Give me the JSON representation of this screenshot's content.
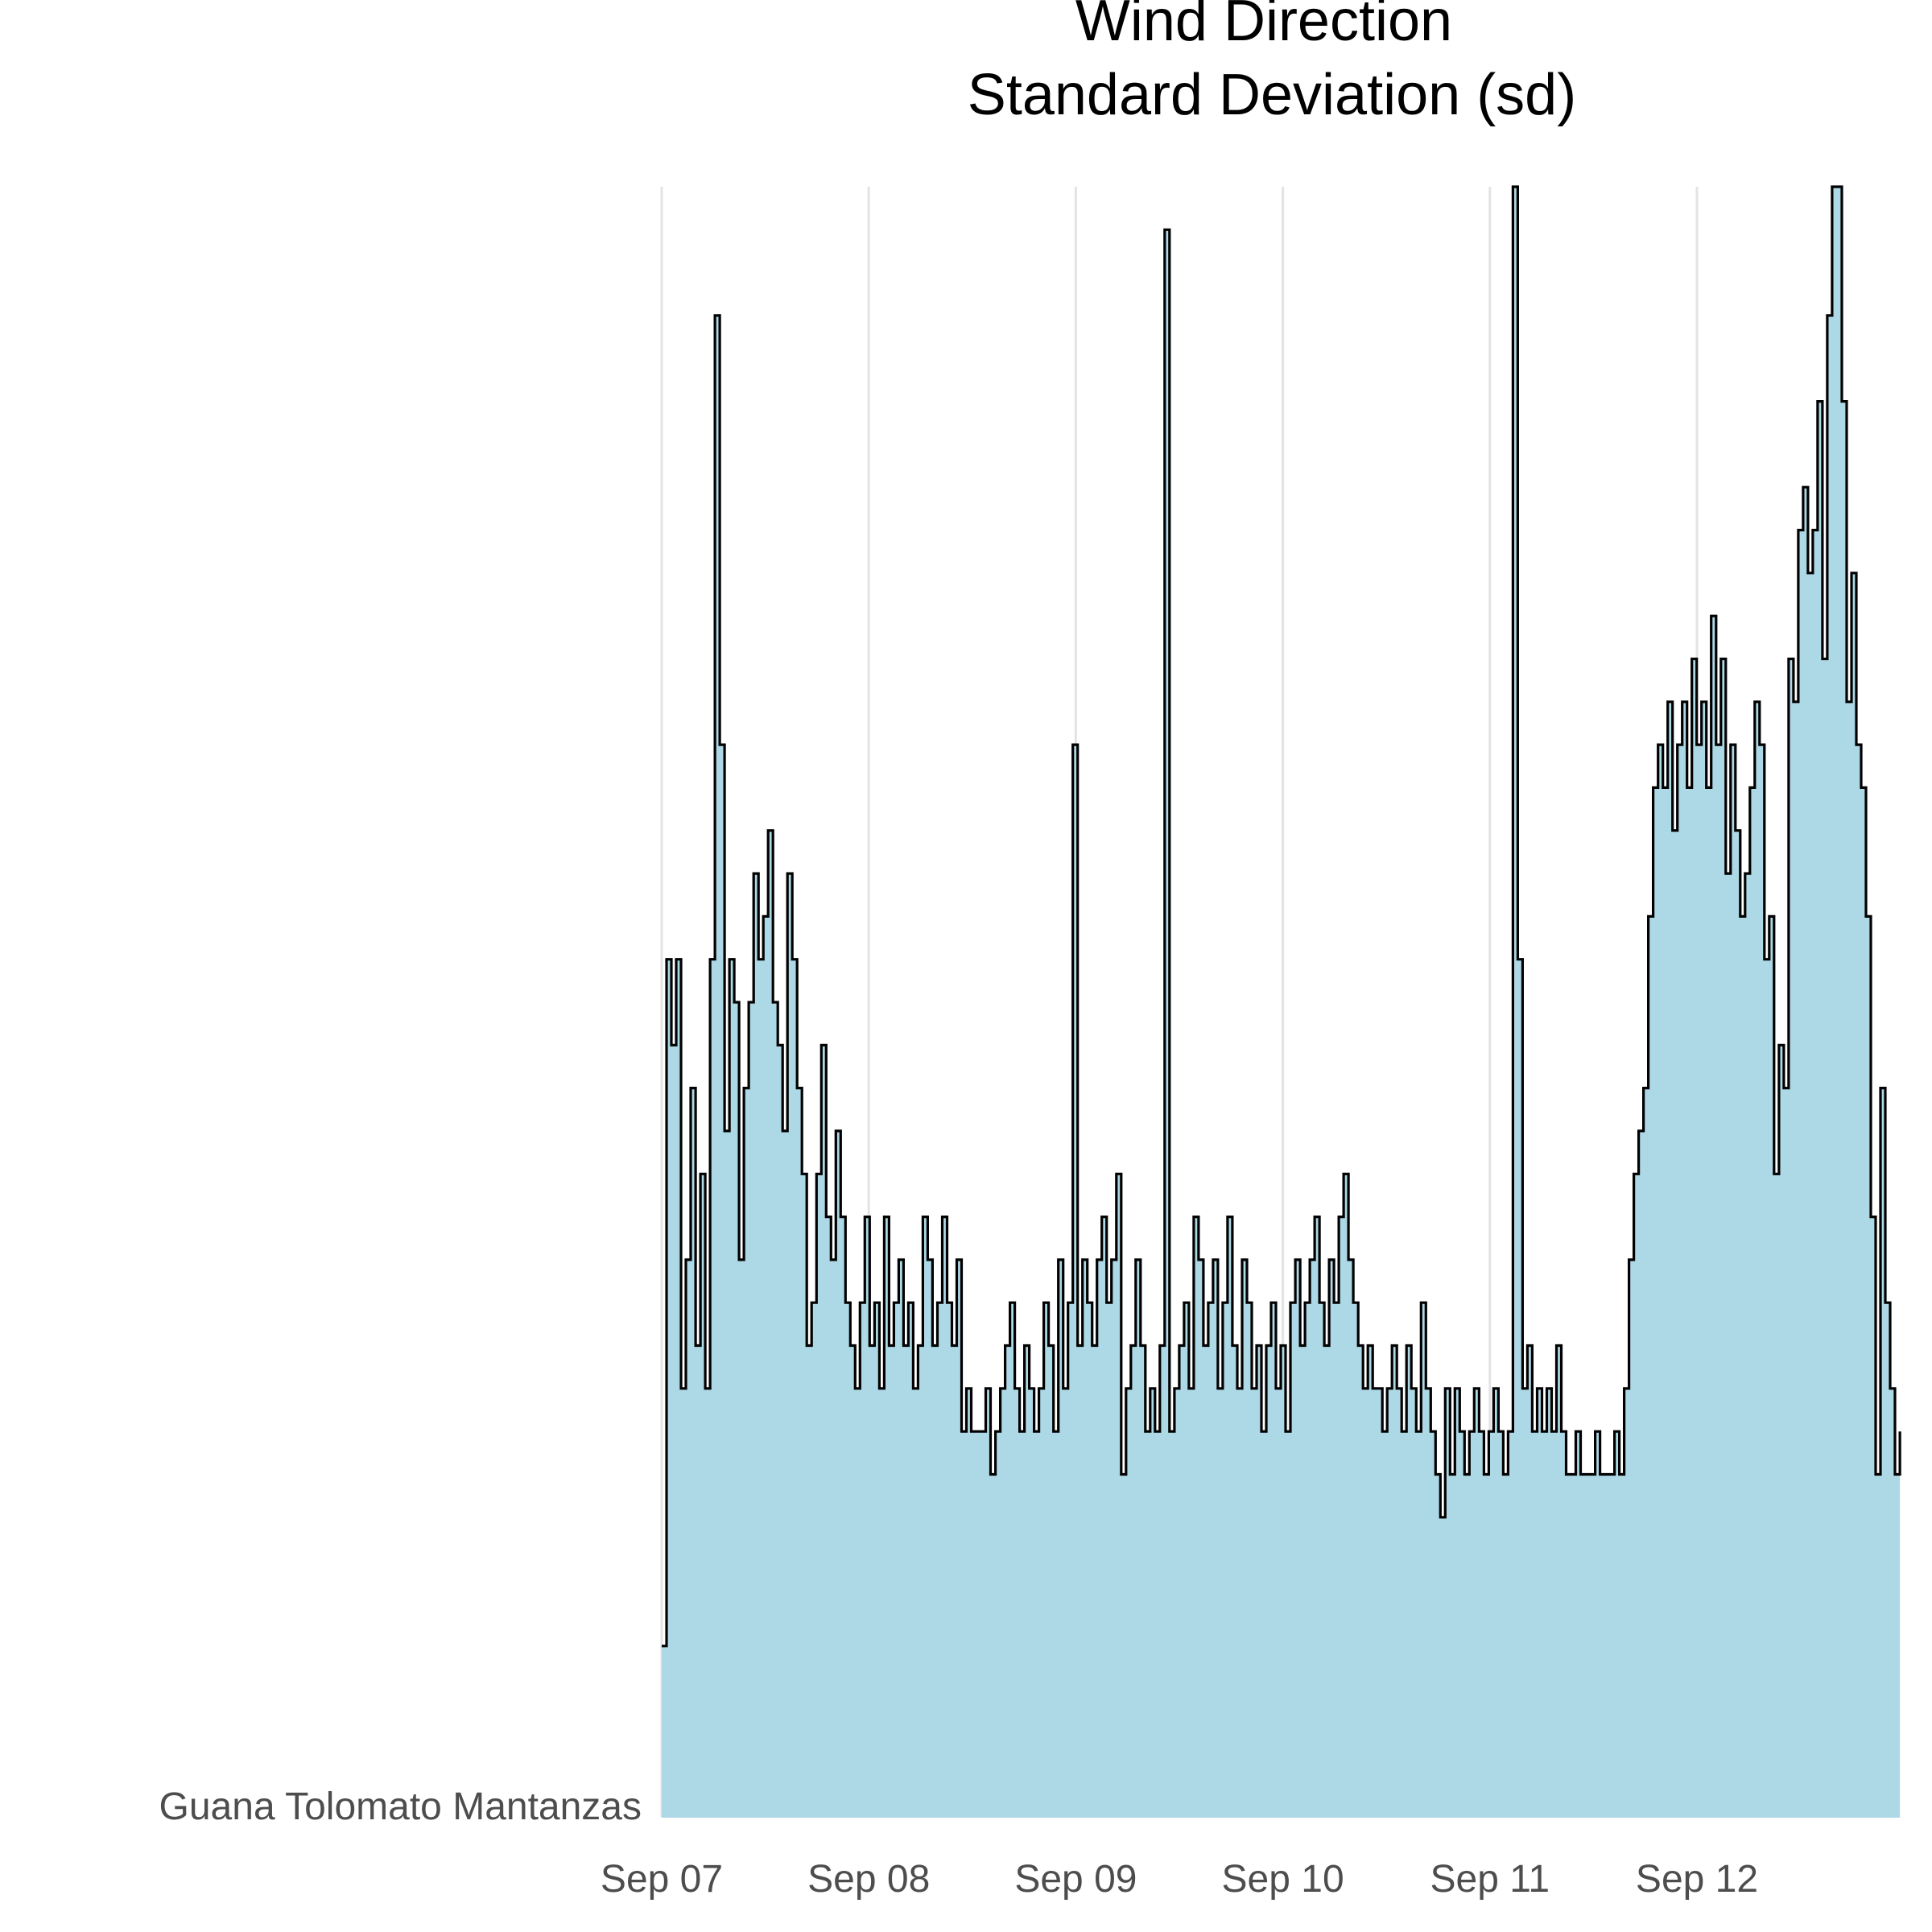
{
  "chart_data": {
    "type": "area",
    "title": "Wind Direction",
    "subtitle": "Standard Deviation (sd)",
    "xlabel": "",
    "ylabel": "",
    "category_label": "Guana Tolomato Mantanzas",
    "x_tick_labels": [
      "Sep 07",
      "Sep 08",
      "Sep 09",
      "Sep 10",
      "Sep 11",
      "Sep 12"
    ],
    "x_range": [
      "Sep 07 00:00",
      "Sep 12 23:45"
    ],
    "y_range": [
      0,
      38
    ],
    "y_axis_shown": false,
    "grid": "vertical major lines at each day",
    "fill_color": "#add8e6",
    "line_color": "#000000",
    "series": [
      {
        "values": [
          4,
          20,
          18,
          20,
          10,
          13,
          17,
          11,
          15,
          10,
          20,
          35,
          25,
          16,
          20,
          19,
          13,
          17,
          19,
          22,
          20,
          21,
          23,
          19,
          18,
          16,
          22,
          20,
          17,
          15,
          11,
          12,
          15,
          18,
          14,
          13,
          16,
          14,
          12,
          11,
          10,
          12,
          14,
          11,
          12,
          10,
          14,
          11,
          12,
          13,
          11,
          12,
          10,
          11,
          14,
          13,
          11,
          12,
          14,
          12,
          11,
          13,
          9,
          10,
          9,
          9,
          9,
          10,
          8,
          9,
          10,
          11,
          12,
          10,
          9,
          11,
          10,
          9,
          10,
          12,
          11,
          9,
          13,
          10,
          12,
          25,
          11,
          13,
          12,
          11,
          13,
          14,
          12,
          13,
          15,
          8,
          10,
          11,
          13,
          11,
          9,
          10,
          9,
          11,
          37,
          9,
          10,
          11,
          12,
          10,
          14,
          13,
          11,
          12,
          13,
          10,
          12,
          14,
          11,
          10,
          13,
          12,
          10,
          11,
          9,
          11,
          12,
          10,
          11,
          9,
          12,
          13,
          11,
          12,
          13,
          14,
          12,
          11,
          13,
          12,
          14,
          15,
          13,
          12,
          11,
          10,
          11,
          10,
          10,
          9,
          10,
          11,
          10,
          9,
          11,
          10,
          9,
          12,
          10,
          9,
          8,
          7,
          10,
          8,
          10,
          9,
          8,
          9,
          10,
          9,
          8,
          9,
          10,
          9,
          8,
          9,
          38,
          20,
          10,
          11,
          9,
          10,
          9,
          10,
          9,
          11,
          9,
          8,
          8,
          9,
          8,
          8,
          8,
          9,
          8,
          8,
          8,
          9,
          8,
          10,
          13,
          15,
          16,
          17,
          21,
          24,
          25,
          24,
          26,
          23,
          25,
          26,
          24,
          27,
          25,
          26,
          24,
          28,
          25,
          27,
          22,
          25,
          23,
          21,
          22,
          24,
          26,
          25,
          20,
          21,
          15,
          18,
          17,
          27,
          26,
          30,
          31,
          29,
          30,
          33,
          27,
          35,
          40,
          38,
          33,
          26,
          29,
          25,
          24,
          21,
          14,
          8,
          17,
          12,
          10,
          8,
          9
        ]
      }
    ]
  }
}
